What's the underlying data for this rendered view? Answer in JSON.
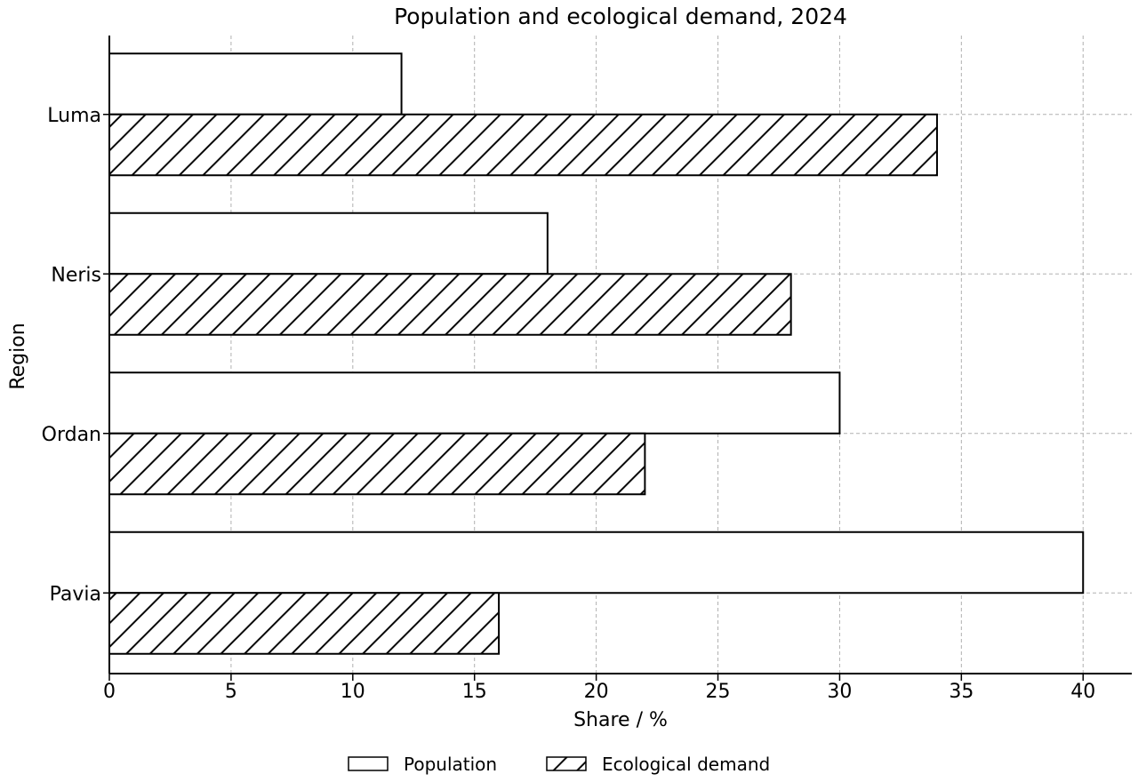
{
  "chart_data": {
    "type": "bar",
    "orientation": "horizontal",
    "title": "Population and ecological demand, 2024",
    "xlabel": "Share / %",
    "ylabel": "Region",
    "categories": [
      "Luma",
      "Neris",
      "Ordan",
      "Pavia"
    ],
    "series": [
      {
        "name": "Population",
        "values": [
          12,
          18,
          30,
          40
        ],
        "fill": "#ffffff",
        "pattern": "none"
      },
      {
        "name": "Ecological demand",
        "values": [
          34,
          28,
          22,
          16
        ],
        "fill": "#ffffff",
        "pattern": "diagonal-hatch"
      }
    ],
    "xlim": [
      0,
      42
    ],
    "xticks": [
      0,
      5,
      10,
      15,
      20,
      25,
      30,
      35,
      40
    ],
    "grid": true,
    "legend_position": "bottom-center",
    "colors": {
      "stroke": "#000000",
      "grid": "#b0b0b0",
      "background": "#ffffff"
    }
  }
}
